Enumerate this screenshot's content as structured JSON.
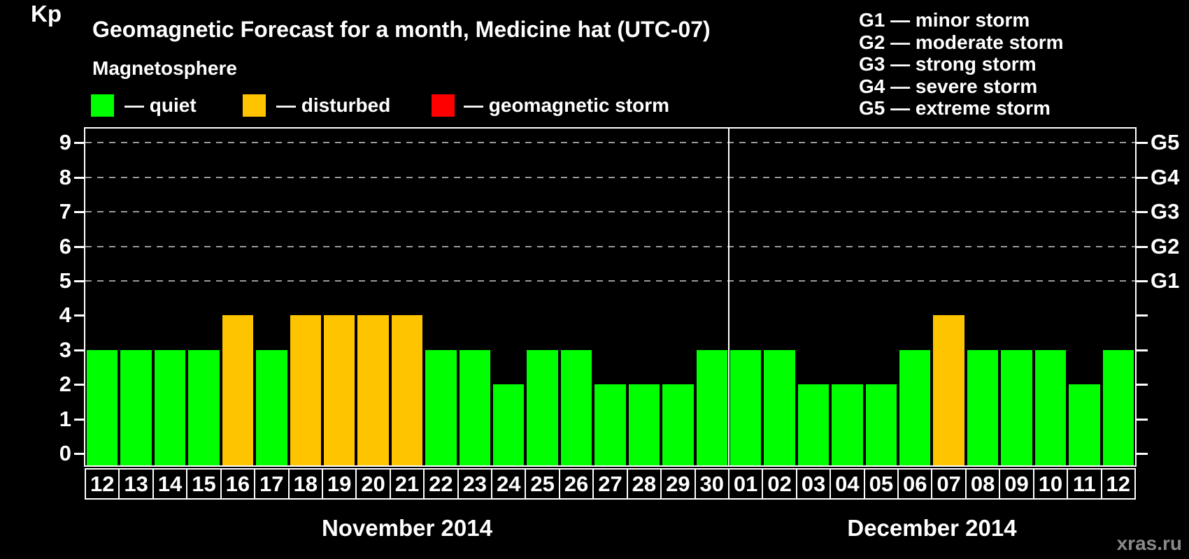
{
  "title": "Geomagnetic Forecast for a month, Medicine hat (UTC-07)",
  "magnetosphere_label": "Magnetosphere",
  "legend": {
    "items": [
      {
        "name": "quiet",
        "label": "— quiet",
        "color": "#00ff00"
      },
      {
        "name": "disturbed",
        "label": "— disturbed",
        "color": "#ffc400"
      },
      {
        "name": "storm",
        "label": "— geomagnetic storm",
        "color": "#ff0000"
      }
    ]
  },
  "g_scale_legend": {
    "items": [
      {
        "label": "G1 — minor storm"
      },
      {
        "label": "G2 — moderate storm"
      },
      {
        "label": "G3 — strong storm"
      },
      {
        "label": "G4 — severe storm"
      },
      {
        "label": "G5 — extreme storm"
      }
    ]
  },
  "watermark": "xras.ru",
  "chart_data": {
    "type": "bar",
    "title": "Geomagnetic Forecast for a month, Medicine hat (UTC-07)",
    "ylabel": "Kp",
    "ylim": [
      0,
      9
    ],
    "yticks_left": [
      0,
      1,
      2,
      3,
      4,
      5,
      6,
      7,
      8,
      9
    ],
    "right_axis": [
      {
        "kp": 5,
        "label": "G1"
      },
      {
        "kp": 6,
        "label": "G2"
      },
      {
        "kp": 7,
        "label": "G3"
      },
      {
        "kp": 8,
        "label": "G4"
      },
      {
        "kp": 9,
        "label": "G5"
      }
    ],
    "gridlines_kp": [
      5,
      6,
      7,
      8,
      9
    ],
    "grid_style": "dashed horizontal lines at storm levels G1–G5",
    "colors": {
      "quiet": "#00ff00",
      "disturbed": "#ffc400",
      "storm": "#ff0000"
    },
    "months": [
      {
        "label": "November 2014",
        "days": [
          {
            "day": "12",
            "kp": 3,
            "status": "quiet"
          },
          {
            "day": "13",
            "kp": 3,
            "status": "quiet"
          },
          {
            "day": "14",
            "kp": 3,
            "status": "quiet"
          },
          {
            "day": "15",
            "kp": 3,
            "status": "quiet"
          },
          {
            "day": "16",
            "kp": 4,
            "status": "disturbed"
          },
          {
            "day": "17",
            "kp": 3,
            "status": "quiet"
          },
          {
            "day": "18",
            "kp": 4,
            "status": "disturbed"
          },
          {
            "day": "19",
            "kp": 4,
            "status": "disturbed"
          },
          {
            "day": "20",
            "kp": 4,
            "status": "disturbed"
          },
          {
            "day": "21",
            "kp": 4,
            "status": "disturbed"
          },
          {
            "day": "22",
            "kp": 3,
            "status": "quiet"
          },
          {
            "day": "23",
            "kp": 3,
            "status": "quiet"
          },
          {
            "day": "24",
            "kp": 2,
            "status": "quiet"
          },
          {
            "day": "25",
            "kp": 3,
            "status": "quiet"
          },
          {
            "day": "26",
            "kp": 3,
            "status": "quiet"
          },
          {
            "day": "27",
            "kp": 2,
            "status": "quiet"
          },
          {
            "day": "28",
            "kp": 2,
            "status": "quiet"
          },
          {
            "day": "29",
            "kp": 2,
            "status": "quiet"
          },
          {
            "day": "30",
            "kp": 3,
            "status": "quiet"
          }
        ]
      },
      {
        "label": "December 2014",
        "days": [
          {
            "day": "01",
            "kp": 3,
            "status": "quiet"
          },
          {
            "day": "02",
            "kp": 3,
            "status": "quiet"
          },
          {
            "day": "03",
            "kp": 2,
            "status": "quiet"
          },
          {
            "day": "04",
            "kp": 2,
            "status": "quiet"
          },
          {
            "day": "05",
            "kp": 2,
            "status": "quiet"
          },
          {
            "day": "06",
            "kp": 3,
            "status": "quiet"
          },
          {
            "day": "07",
            "kp": 4,
            "status": "disturbed"
          },
          {
            "day": "08",
            "kp": 3,
            "status": "quiet"
          },
          {
            "day": "09",
            "kp": 3,
            "status": "quiet"
          },
          {
            "day": "10",
            "kp": 3,
            "status": "quiet"
          },
          {
            "day": "11",
            "kp": 2,
            "status": "quiet"
          },
          {
            "day": "12",
            "kp": 3,
            "status": "quiet"
          }
        ]
      }
    ],
    "legend_position": "top-left"
  }
}
